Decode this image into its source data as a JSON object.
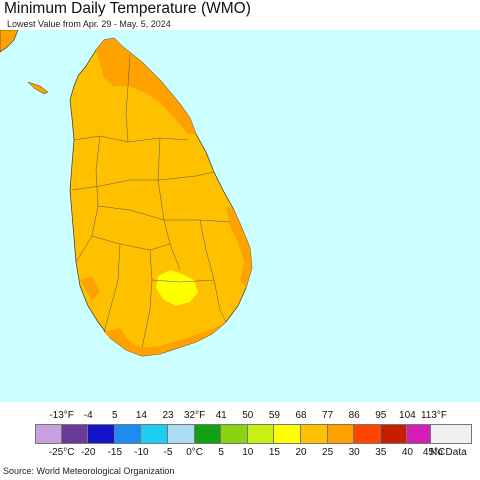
{
  "header": {
    "title": "Minimum Daily Temperature (WMO)",
    "subtitle": "Lowest Value from Apr. 29 - May. 5, 2024"
  },
  "map": {
    "region": "Sri Lanka",
    "ocean_color": "#ccffff",
    "zones": [
      {
        "name": "main-zone",
        "band": "20-25°C",
        "color": "#ffc000"
      },
      {
        "name": "coastal-zone",
        "band": "25-30°C",
        "color": "#ffa200"
      },
      {
        "name": "highland-zone",
        "band": "15-20°C",
        "color": "#ffff00"
      }
    ]
  },
  "legend": {
    "fahrenheit_ticks": [
      "-13°F",
      "-4",
      "5",
      "14",
      "23",
      "32°F",
      "41",
      "50",
      "59",
      "68",
      "77",
      "86",
      "95",
      "104",
      "113°F"
    ],
    "celsius_ticks": [
      "-25°C",
      "-20",
      "-15",
      "-10",
      "-5",
      "0°C",
      "5",
      "10",
      "15",
      "20",
      "25",
      "30",
      "35",
      "40",
      "45°C"
    ],
    "colors": [
      "#c8a0e0",
      "#6a3a98",
      "#1414c8",
      "#1e8cf0",
      "#1ecdf0",
      "#aadcf5",
      "#14a014",
      "#8cd214",
      "#c8f014",
      "#ffff00",
      "#ffc000",
      "#ffa200",
      "#ff4600",
      "#c81e00",
      "#d21eb4",
      "#f082d2"
    ],
    "no_data_label": "No Data",
    "no_data_color": "#f0f0f0"
  },
  "footer": {
    "source": "Source: World Meteorological Organization"
  }
}
